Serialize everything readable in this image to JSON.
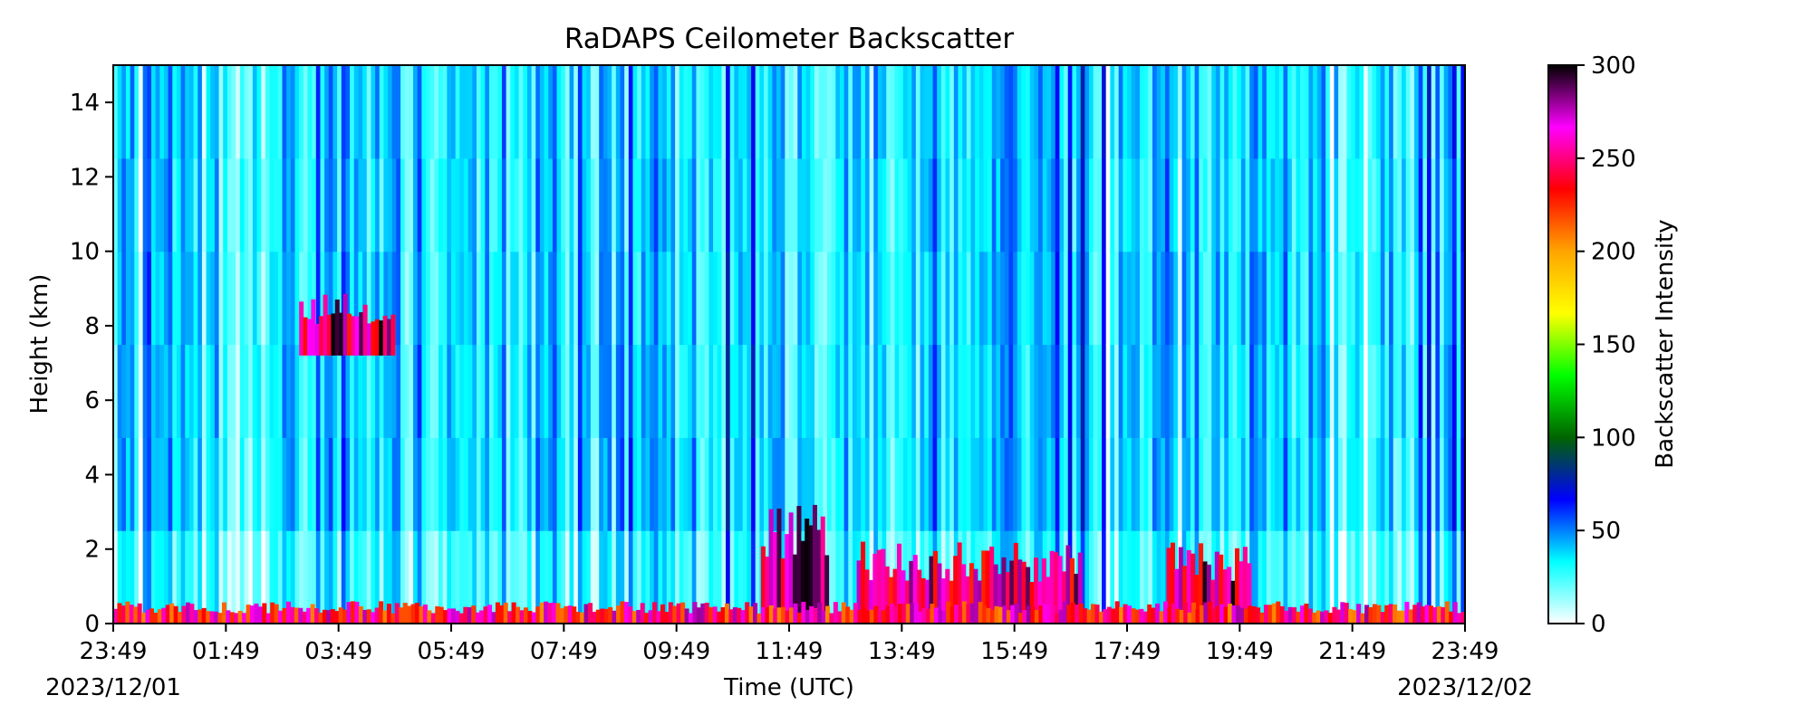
{
  "chart_data": {
    "type": "heatmap",
    "title": "RaDAPS Ceilometer Backscatter",
    "xlabel": "Time (UTC)",
    "ylabel": "Height (km)",
    "x_ticks": [
      "23:49",
      "01:49",
      "03:49",
      "05:49",
      "07:49",
      "09:49",
      "11:49",
      "13:49",
      "15:49",
      "17:49",
      "19:49",
      "21:49",
      "23:49"
    ],
    "x_ticks_hours": [
      0,
      2,
      4,
      6,
      8,
      10,
      12,
      14,
      16,
      18,
      20,
      22,
      24
    ],
    "start_date": "2023/12/01",
    "end_date": "2023/12/02",
    "y_ticks": [
      0,
      2,
      4,
      6,
      8,
      10,
      12,
      14
    ],
    "ylim": [
      0,
      15
    ],
    "colorbar": {
      "label": "Backscatter Intensity",
      "ticks": [
        0,
        50,
        100,
        150,
        200,
        250,
        300
      ],
      "range": [
        0,
        300
      ],
      "colors": [
        "#ffffff",
        "#00ffff",
        "#0000ff",
        "#006400",
        "#00ff00",
        "#ffff00",
        "#ffa500",
        "#ff0000",
        "#ff00ff",
        "#000000"
      ]
    },
    "features": [
      {
        "name": "elevated cloud layer",
        "time_hours": [
          3.3,
          5.0
        ],
        "height_km": [
          7.2,
          9.0
        ],
        "intensity": 300
      },
      {
        "name": "low cloud 11:49",
        "time_hours": [
          11.5,
          12.7
        ],
        "height_km": [
          0.2,
          3.2
        ],
        "intensity": 300
      },
      {
        "name": "low cloud 13:49-15:49",
        "time_hours": [
          13.2,
          17.2
        ],
        "height_km": [
          0.2,
          2.2
        ],
        "intensity": 300
      },
      {
        "name": "low cloud 19:49",
        "time_hours": [
          18.7,
          20.2
        ],
        "height_km": [
          0.2,
          2.2
        ],
        "intensity": 300
      },
      {
        "name": "surface aerosol layer",
        "time_hours": [
          0,
          24
        ],
        "height_km": [
          0,
          0.6
        ],
        "intensity": 280
      }
    ],
    "grid": false
  }
}
